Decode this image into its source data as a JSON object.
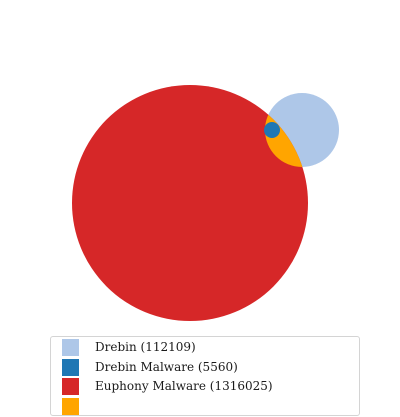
{
  "chart_data": {
    "type": "venn",
    "sets": [
      {
        "label": "Drebin (112109)",
        "count": 112109,
        "color": "#aec7e8"
      },
      {
        "label": "Drebin Malware (5560)",
        "count": 5560,
        "color": "#1f77b4"
      },
      {
        "label": "Euphony Malware (1316025)",
        "count": 1316025,
        "color": "#d62728"
      },
      {
        "label": "",
        "count": null,
        "color": "#ffa500"
      }
    ],
    "legend_position": "bottom"
  }
}
